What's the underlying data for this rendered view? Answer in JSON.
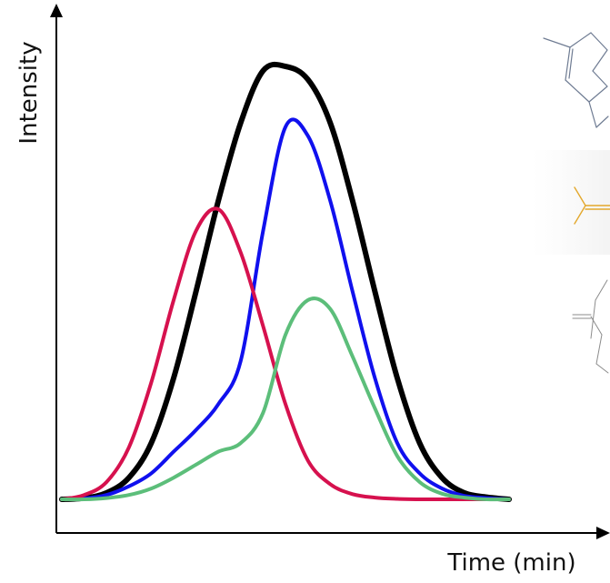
{
  "chart_data": {
    "type": "line",
    "title": "",
    "xlabel": "Time (min)",
    "ylabel": "Intensity",
    "xlim": [
      0,
      100
    ],
    "ylim": [
      0,
      100
    ],
    "grid": false,
    "legend": "none",
    "ticks": "none",
    "series": [
      {
        "color": "#000000",
        "x": [
          0,
          5,
          10,
          15,
          20,
          25,
          30,
          35,
          40,
          45,
          50,
          55,
          60,
          65,
          70,
          75,
          80,
          85,
          90,
          95,
          100
        ],
        "y": [
          0,
          0.3,
          1.5,
          5,
          13,
          28,
          48,
          69,
          87,
          99,
          100,
          97,
          87,
          69,
          48,
          28,
          13,
          5,
          1.5,
          0.5,
          0
        ]
      },
      {
        "color": "#1010ee",
        "x": [
          0,
          5,
          10,
          15,
          20,
          25,
          30,
          35,
          40,
          45,
          50,
          55,
          60,
          65,
          70,
          75,
          80,
          85,
          90,
          95,
          100
        ],
        "y": [
          0,
          0.2,
          1,
          3,
          6,
          11,
          16,
          22,
          32,
          62,
          86,
          84,
          69,
          48,
          28,
          13,
          6,
          2.5,
          0.8,
          0.3,
          0
        ]
      },
      {
        "color": "#d6114e",
        "x": [
          0,
          5,
          10,
          15,
          20,
          25,
          30,
          35,
          40,
          45,
          50,
          55,
          60,
          65,
          70,
          75,
          80,
          85,
          90,
          95,
          100
        ],
        "y": [
          0,
          1,
          4,
          12,
          27,
          46,
          62,
          67,
          57,
          40,
          22,
          9,
          3.5,
          1.2,
          0.4,
          0.1,
          0,
          0,
          0,
          0,
          0
        ]
      },
      {
        "color": "#5cbe7a",
        "x": [
          0,
          5,
          10,
          15,
          20,
          25,
          30,
          35,
          40,
          45,
          50,
          55,
          60,
          65,
          70,
          75,
          80,
          85,
          90,
          95,
          100
        ],
        "y": [
          0,
          0,
          0.3,
          1,
          2.5,
          5,
          8,
          11,
          13,
          20,
          38,
          46,
          44,
          33,
          21,
          10,
          4,
          1.3,
          0.4,
          0,
          0
        ]
      }
    ]
  },
  "decor": {
    "molecules": [
      {
        "name": "molecule-top",
        "color": "#6f7c93"
      },
      {
        "name": "molecule-middle",
        "color": "#e3a82c"
      },
      {
        "name": "molecule-bottom",
        "color": "#8b8b8b"
      }
    ]
  }
}
